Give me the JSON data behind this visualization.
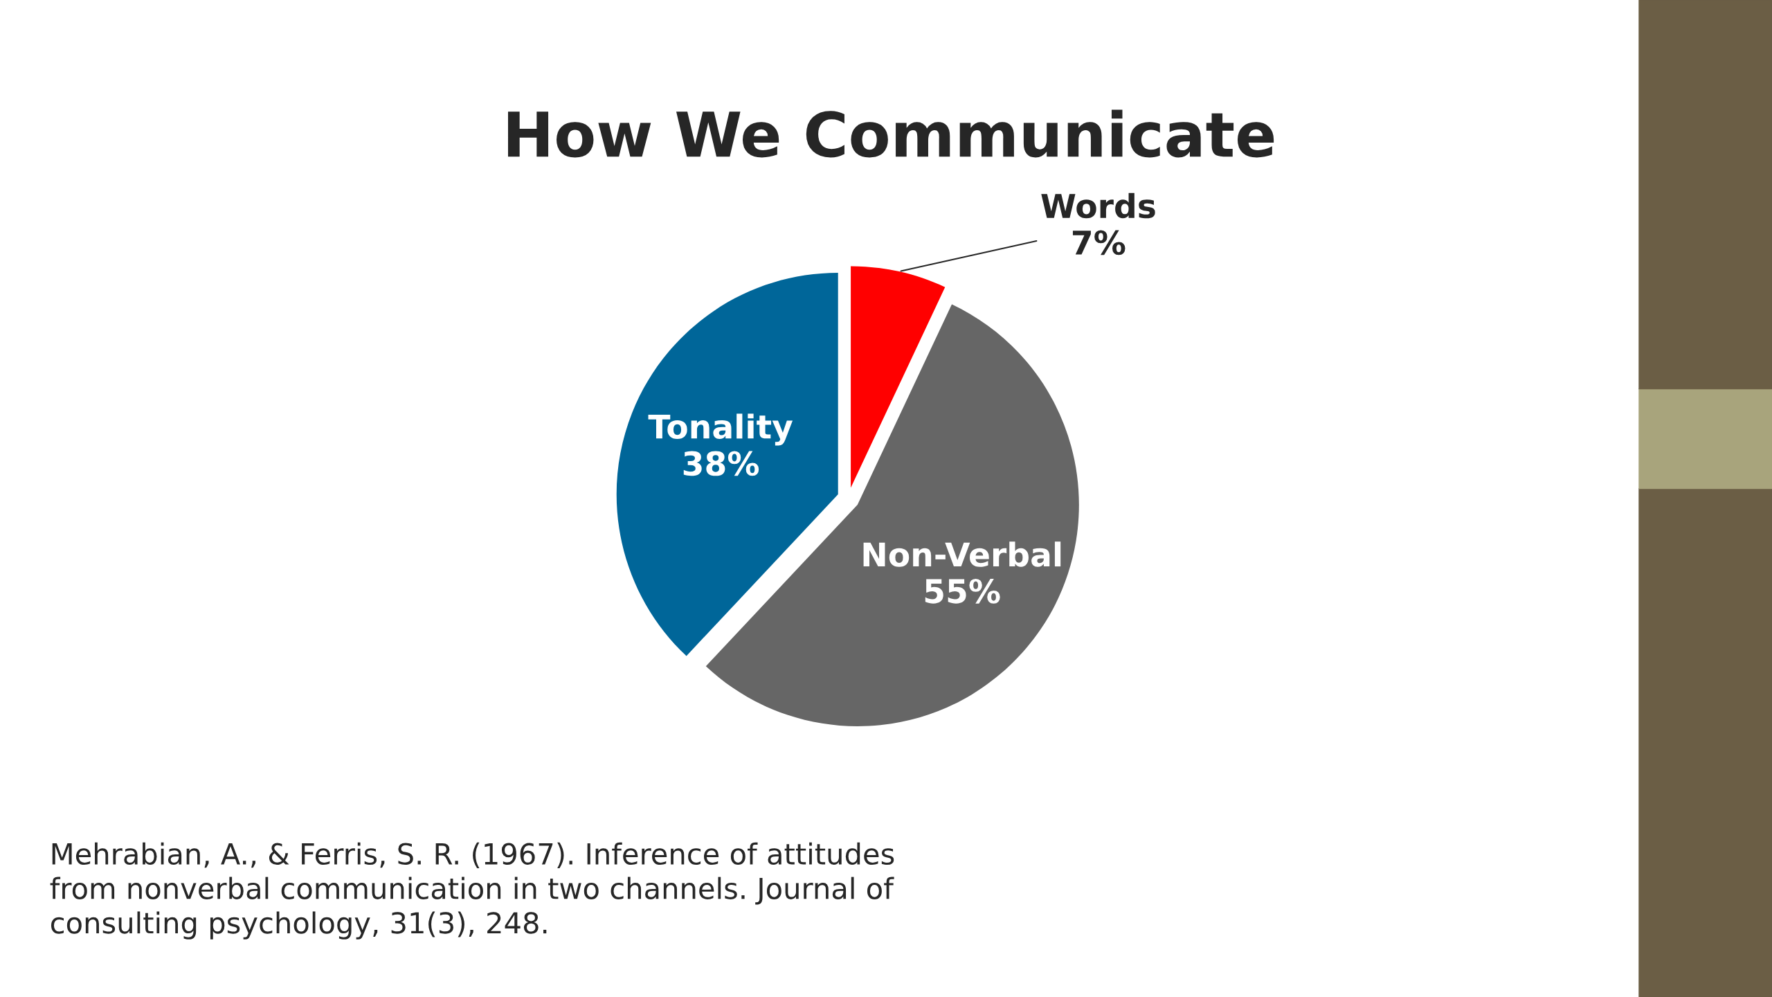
{
  "chart_data": {
    "type": "pie",
    "title": "How We Communicate",
    "categories": [
      "Words",
      "Non-Verbal",
      "Tonality"
    ],
    "values": [
      7,
      55,
      38
    ],
    "colors": [
      "#ff0000",
      "#666666",
      "#006699"
    ],
    "value_labels": [
      "7%",
      "55%",
      "38%"
    ],
    "annotations": [
      "Mehrabian, A., & Ferris, S. R. (1967). Inference of attitudes\nfrom nonverbal communication in two channels. Journal of\nconsulting psychology, 31(3), 248."
    ]
  }
}
